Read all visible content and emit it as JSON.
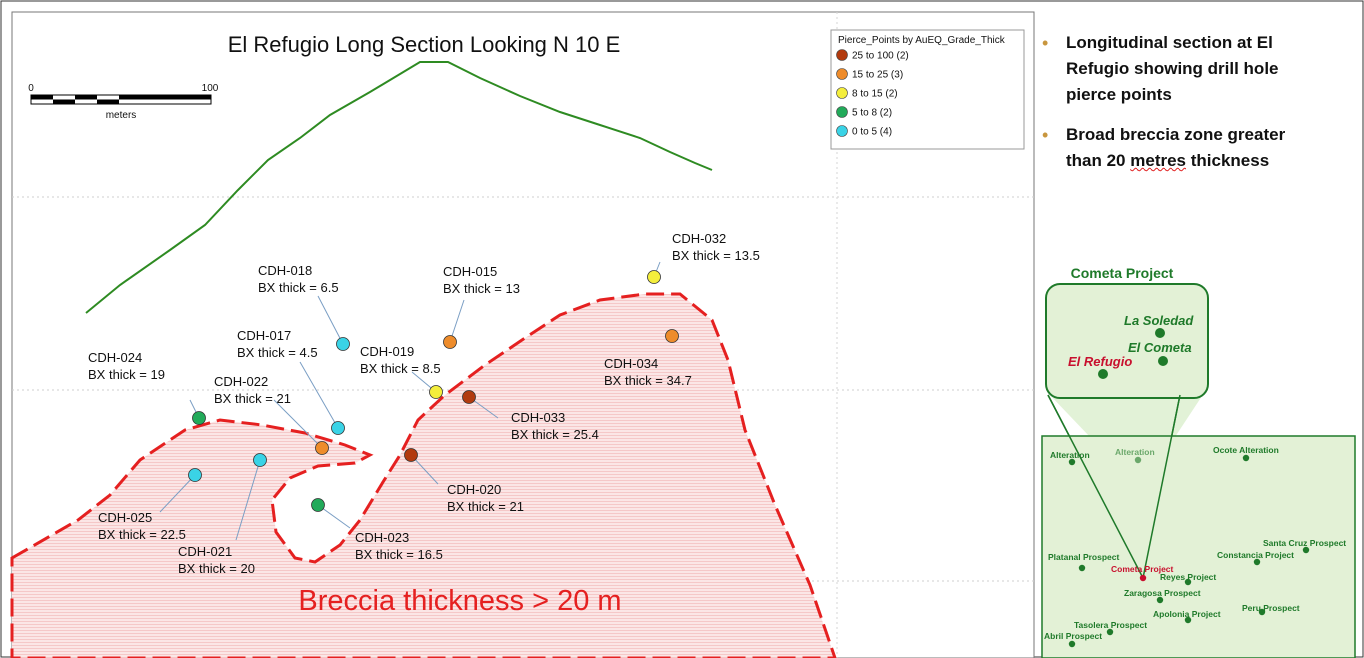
{
  "section": {
    "title": "El Refugio Long Section Looking N 10 E",
    "scale": {
      "start": "0",
      "end": "100",
      "unit": "meters"
    },
    "legend": {
      "title": "Pierce_Points by AuEQ_Grade_Thick",
      "items": [
        {
          "label": "25 to 100 (2)",
          "color": "#b23a0e"
        },
        {
          "label": "15 to  25 (3)",
          "color": "#ee8c2b"
        },
        {
          "label": "8 to  15 (2)",
          "color": "#f4ee3c"
        },
        {
          "label": "5 to   8 (2)",
          "color": "#22aa5a"
        },
        {
          "label": "0 to   5 (4)",
          "color": "#3ad3e6"
        }
      ]
    },
    "breccia_label": "Breccia thickness > 20 m",
    "holes": [
      {
        "id": "CDH-032",
        "thick": "BX thick = 13.5",
        "color": "#f4ee3c"
      },
      {
        "id": "CDH-018",
        "thick": "BX thick = 6.5",
        "color": "#3ad3e6"
      },
      {
        "id": "CDH-015",
        "thick": "BX thick = 13",
        "color": "#ee8c2b"
      },
      {
        "id": "CDH-017",
        "thick": "BX thick = 4.5",
        "color": "#3ad3e6"
      },
      {
        "id": "CDH-019",
        "thick": "BX thick = 8.5",
        "color": "#f4ee3c"
      },
      {
        "id": "CDH-034",
        "thick": "BX thick = 34.7",
        "color": "#ee8c2b"
      },
      {
        "id": "CDH-024",
        "thick": "BX thick = 19",
        "color": "#22aa5a"
      },
      {
        "id": "CDH-022",
        "thick": "BX thick = 21",
        "color": "#ee8c2b"
      },
      {
        "id": "CDH-033",
        "thick": "BX thick = 25.4",
        "color": "#b23a0e"
      },
      {
        "id": "CDH-020",
        "thick": "BX thick = 21",
        "color": "#b23a0e"
      },
      {
        "id": "CDH-025",
        "thick": "BX thick = 22.5",
        "color": "#3ad3e6"
      },
      {
        "id": "CDH-021",
        "thick": "BX thick = 20",
        "color": "#3ad3e6"
      },
      {
        "id": "CDH-023",
        "thick": "BX thick = 16.5",
        "color": "#22aa5a"
      }
    ]
  },
  "bullets": [
    {
      "line1": "Longitudinal section at El",
      "line2": "Refugio showing drill hole",
      "line3": "pierce points"
    },
    {
      "line1": "Broad breccia zone greater",
      "line2a": "than 20 ",
      "line2b": "metres",
      "line2c": " thickness"
    }
  ],
  "map": {
    "title": "Cometa Project",
    "inset": [
      {
        "label": "La Soledad"
      },
      {
        "label": "El Cometa"
      },
      {
        "label": "El Refugio"
      }
    ],
    "prospects": [
      "Alteration",
      "Alteration",
      "Ocote Alteration",
      "Santa Cruz Prospect",
      "Constancia Project",
      "Platanal Prospect",
      "Cometa Project",
      "Reyes Project",
      "Zaragosa Prospect",
      "Peru Prospect",
      "Apolonia Project",
      "Tasolera Prospect",
      "Abril Prospect"
    ]
  },
  "colors": {
    "breccia": "#e52020",
    "topography": "#2e8b22",
    "map_green": "#1f7a2a",
    "map_fill": "#e3f1d6"
  }
}
